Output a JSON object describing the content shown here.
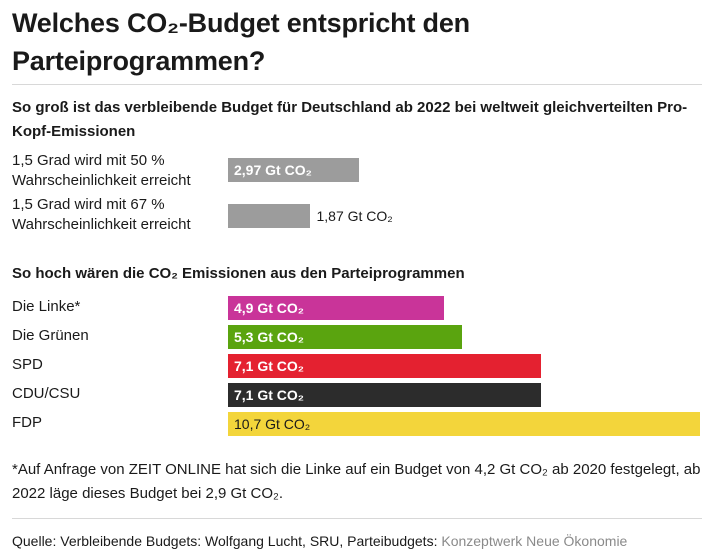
{
  "title": "Welches CO₂-Budget entspricht den Parteiprogrammen?",
  "colors": {
    "budget": "#9c9c9c",
    "linke": "#c93499",
    "gruene": "#5aa40f",
    "spd": "#e42130",
    "cdu": "#2c2c2c",
    "fdp": "#f3d53b"
  },
  "chart_data": [
    {
      "type": "bar",
      "title": "So groß ist das verbleibende Budget für Deutschland ab 2022 bei weltweit gleichverteilten Pro-Kopf-Emissionen",
      "unit": "Gt CO₂",
      "categories": [
        "1,5 Grad wird mit 50 % Wahrscheinlichkeit erreicht",
        "1,5 Grad wird mit 67 % Wahrscheinlichkeit erreicht"
      ],
      "values": [
        2.97,
        1.87
      ],
      "value_labels": [
        "2,97 Gt CO₂",
        "1,87 Gt CO₂"
      ],
      "category_lines": [
        [
          "1,5 Grad wird mit 50 %",
          "Wahrscheinlichkeit erreicht"
        ],
        [
          "1,5 Grad wird mit 67 %",
          "Wahrscheinlichkeit erreicht"
        ]
      ],
      "ylim": [
        0,
        10.7
      ]
    },
    {
      "type": "bar",
      "title": "So hoch wären die CO₂ Emissionen aus den Parteiprogrammen",
      "unit": "Gt CO₂",
      "categories": [
        "Die Linke*",
        "Die Grünen",
        "SPD",
        "CDU/CSU",
        "FDP"
      ],
      "values": [
        4.9,
        5.3,
        7.1,
        7.1,
        10.7
      ],
      "value_labels": [
        "4,9 Gt CO₂",
        "5,3 Gt CO₂",
        "7,1 Gt CO₂",
        "7,1 Gt CO₂",
        "10,7 Gt CO₂"
      ],
      "ylim": [
        0,
        10.7
      ]
    }
  ],
  "footnote": "*Auf Anfrage von ZEIT ONLINE hat sich die Linke auf ein Budget von 4,2 Gt CO₂ ab 2020 festgelegt, ab 2022 läge dieses Budget bei 2,9 Gt CO₂.",
  "source": {
    "prefix": "Quelle: Verbleibende Budgets: Wolfgang Lucht, SRU, Parteibudgets: ",
    "link": "Konzeptwerk Neue Ökonomie"
  }
}
